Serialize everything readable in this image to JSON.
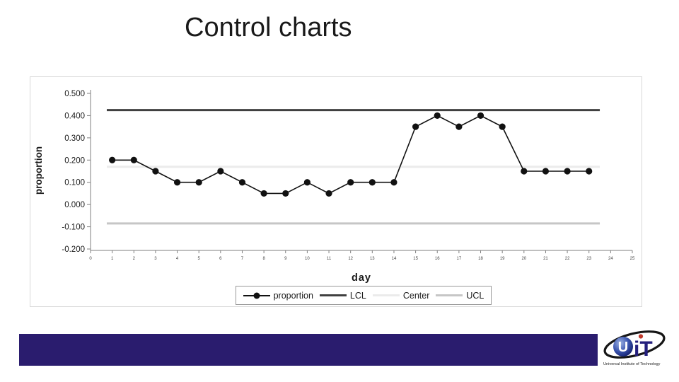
{
  "slide": {
    "title": "Control charts"
  },
  "chart_data": {
    "type": "line",
    "title": "",
    "xlabel": "day",
    "ylabel": "proportion",
    "x": [
      1,
      2,
      3,
      4,
      5,
      6,
      7,
      8,
      9,
      10,
      11,
      12,
      13,
      14,
      15,
      16,
      17,
      18,
      19,
      20,
      21,
      22,
      23
    ],
    "series": [
      {
        "name": "proportion",
        "kind": "line-markers",
        "values": [
          0.2,
          0.2,
          0.15,
          0.1,
          0.1,
          0.15,
          0.1,
          0.05,
          0.05,
          0.1,
          0.05,
          0.1,
          0.1,
          0.1,
          0.35,
          0.4,
          0.35,
          0.4,
          0.35,
          0.15,
          0.15,
          0.15,
          0.15
        ],
        "color": "#111111"
      },
      {
        "name": "LCL",
        "kind": "hline",
        "value": 0.425,
        "color": "#404040"
      },
      {
        "name": "Center",
        "kind": "hline",
        "value": 0.17,
        "color": "#ebebeb"
      },
      {
        "name": "UCL",
        "kind": "hline",
        "value": -0.085,
        "color": "#c6c6c6"
      }
    ],
    "xlim": [
      0,
      25
    ],
    "ylim": [
      -0.2,
      0.5
    ],
    "xticks": [
      "0",
      "1",
      "2",
      "3",
      "4",
      "5",
      "6",
      "7",
      "8",
      "9",
      "10",
      "11",
      "12",
      "13",
      "14",
      "15",
      "16",
      "17",
      "18",
      "19",
      "20",
      "21",
      "22",
      "23",
      "24",
      "25"
    ],
    "yticks": [
      "0.500",
      "0.400",
      "0.300",
      "0.200",
      "0.100",
      "0.000",
      "-0.100",
      "-0.200"
    ],
    "grid": false,
    "legend_position": "bottom"
  },
  "legend": {
    "items": [
      {
        "label": "proportion",
        "series": "proportion"
      },
      {
        "label": "LCL",
        "series": "LCL"
      },
      {
        "label": "Center",
        "series": "Center"
      },
      {
        "label": "UCL",
        "series": "UCL"
      }
    ]
  },
  "footer": {
    "logo": {
      "u": "U",
      "it": "iT",
      "caption": "Universal Institute of Technology"
    }
  },
  "colors": {
    "footer_bar": "#2a1c6e",
    "axis": "#7f7f7f",
    "tick_text": "#1a1a1a"
  }
}
